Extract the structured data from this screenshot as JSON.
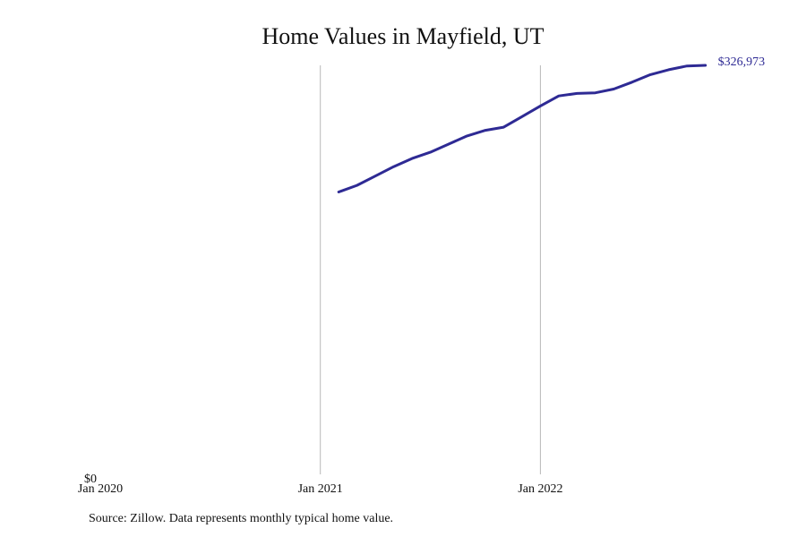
{
  "title": "Home Values in Mayfield, UT",
  "source_note": "Source: Zillow. Data represents monthly typical home value.",
  "colors": {
    "line": "#2e2a94",
    "grid": "#b8b8b8",
    "text": "#111111"
  },
  "chart_data": {
    "type": "line",
    "title": "Home Values in Mayfield, UT",
    "xlabel": "",
    "ylabel": "",
    "x_ticks": [
      "Jan 2020",
      "Jan 2021",
      "Jan 2022"
    ],
    "y_ticks": [
      "$0"
    ],
    "ylim": [
      0,
      326973
    ],
    "xlim": [
      "2020-01",
      "2022-09"
    ],
    "grid": "vertical",
    "end_label": "$326,973",
    "series": [
      {
        "x": [
          "2021-02",
          "2021-03",
          "2021-04",
          "2021-05",
          "2021-06",
          "2021-07",
          "2021-08",
          "2021-09",
          "2021-10",
          "2021-11",
          "2021-12",
          "2022-01",
          "2022-02",
          "2022-03",
          "2022-04",
          "2022-05",
          "2022-06",
          "2022-07",
          "2022-08",
          "2022-09",
          "2022-10"
        ],
        "y": [
          225700,
          231000,
          238500,
          246000,
          252500,
          257500,
          264000,
          270500,
          275000,
          277500,
          286000,
          294500,
          302500,
          304500,
          305000,
          308000,
          313500,
          319500,
          323500,
          326500,
          326973
        ]
      }
    ]
  }
}
